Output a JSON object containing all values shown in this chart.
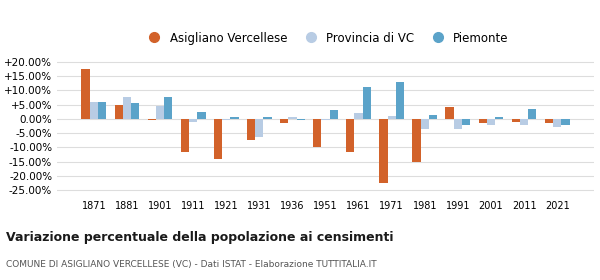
{
  "years": [
    1871,
    1881,
    1901,
    1911,
    1921,
    1931,
    1936,
    1951,
    1961,
    1971,
    1981,
    1991,
    2001,
    2011,
    2021
  ],
  "asigliano": [
    17.5,
    5.0,
    -0.5,
    -11.5,
    -14.0,
    -7.5,
    -1.5,
    -10.0,
    -11.5,
    -22.5,
    -15.0,
    4.0,
    -1.5,
    -1.0,
    -1.5
  ],
  "provincia": [
    6.0,
    7.5,
    4.5,
    -1.0,
    -0.5,
    -6.5,
    0.5,
    -0.5,
    2.0,
    1.0,
    -3.5,
    -3.5,
    -2.0,
    -2.0,
    -3.0
  ],
  "piemonte": [
    6.0,
    5.5,
    7.5,
    2.5,
    0.5,
    0.5,
    -0.5,
    3.0,
    11.0,
    13.0,
    1.5,
    -2.0,
    0.5,
    3.5,
    -2.0
  ],
  "color_asigliano": "#d2622a",
  "color_provincia": "#b8cce4",
  "color_piemonte": "#5ba3c9",
  "title": "Variazione percentuale della popolazione ai censimenti",
  "subtitle": "COMUNE DI ASIGLIANO VERCELLESE (VC) - Dati ISTAT - Elaborazione TUTTITALIA.IT",
  "legend_labels": [
    "Asigliano Vercellese",
    "Provincia di VC",
    "Piemonte"
  ],
  "ylim": [
    -27,
    22
  ],
  "yticks": [
    -25,
    -20,
    -15,
    -10,
    -5,
    0,
    5,
    10,
    15,
    20
  ],
  "background_color": "#ffffff",
  "grid_color": "#dddddd"
}
